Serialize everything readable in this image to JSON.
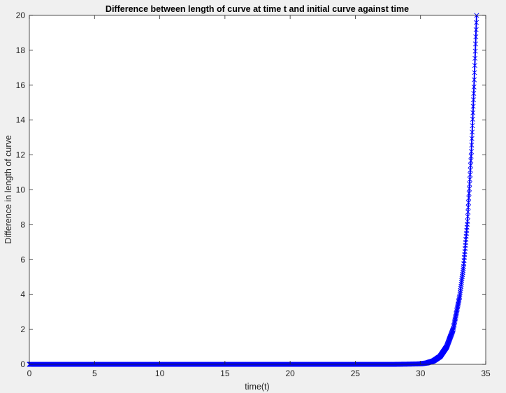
{
  "chart_data": {
    "type": "line",
    "title": "Difference between length of curve at time t and initial curve against time",
    "xlabel": "time(t)",
    "ylabel": "Difference in length of curve",
    "xlim": [
      0,
      35
    ],
    "ylim": [
      0,
      20
    ],
    "xticks": [
      0,
      5,
      10,
      15,
      20,
      25,
      30,
      35
    ],
    "yticks": [
      0,
      2,
      4,
      6,
      8,
      10,
      12,
      14,
      16,
      18,
      20
    ],
    "xtick_labels": [
      "0",
      "5",
      "10",
      "15",
      "20",
      "25",
      "30",
      "35"
    ],
    "ytick_labels": [
      "0",
      "2",
      "4",
      "6",
      "8",
      "10",
      "12",
      "14",
      "16",
      "18",
      "20"
    ],
    "grid": false,
    "legend": "none",
    "marker": "x",
    "series": [
      {
        "color": "#0000ff",
        "x": [
          0,
          5,
          10,
          15,
          20,
          25,
          28,
          29,
          30,
          30.5,
          31,
          31.5,
          32,
          32.5,
          33,
          33.3,
          33.6,
          33.9,
          34.1,
          34.3
        ],
        "y": [
          0,
          0,
          0,
          0,
          0,
          0,
          0,
          0.01,
          0.03,
          0.08,
          0.2,
          0.45,
          1.0,
          2.0,
          3.9,
          5.6,
          8.2,
          12.2,
          15.9,
          20
        ]
      }
    ]
  }
}
